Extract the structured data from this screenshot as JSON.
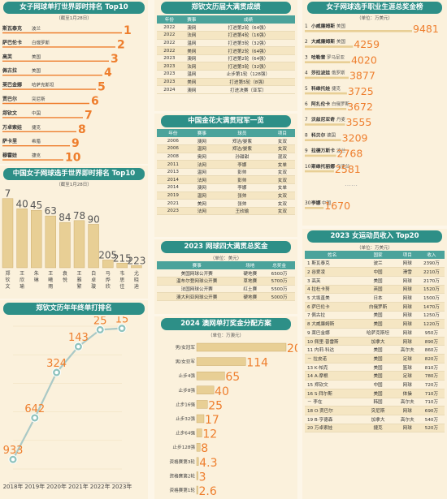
{
  "p1": {
    "title": "女子网球单打世界即时排名 Top10",
    "subtitle": "（截至1月28日）",
    "rows": [
      {
        "name": "斯瓦泰克",
        "country": "波兰",
        "rank": "1"
      },
      {
        "name": "萨巴伦卡",
        "country": "白俄罗斯",
        "rank": "2"
      },
      {
        "name": "高芙",
        "country": "美国",
        "rank": "3"
      },
      {
        "name": "佩古拉",
        "country": "美国",
        "rank": "4"
      },
      {
        "name": "莱巴金娜",
        "country": "哈萨克斯坦",
        "rank": "5"
      },
      {
        "name": "贾巴尔",
        "country": "突尼斯",
        "rank": "6"
      },
      {
        "name": "郑钦文",
        "country": "中国",
        "rank": "7"
      },
      {
        "name": "万卓索娃",
        "country": "捷克",
        "rank": "8"
      },
      {
        "name": "萨卡里",
        "country": "希腊",
        "rank": "9"
      },
      {
        "name": "穆霍娃",
        "country": "捷克",
        "rank": "10"
      }
    ]
  },
  "p2": {
    "title": "中国女子网球选手世界即时排名 Top10",
    "subtitle": "（截至1月28日）",
    "chart_data": {
      "type": "bar",
      "categories": [
        "郑钦文",
        "王欣瑜",
        "朱琳",
        "王曦雨",
        "袁悦",
        "王雅繁",
        "白卓璇",
        "马烨欣",
        "韦思佳",
        "尤晓迪"
      ],
      "values": [
        7,
        40,
        45,
        63,
        84,
        78,
        90,
        205,
        215,
        223
      ]
    }
  },
  "p3": {
    "title": "郑钦文历年年终单打排名",
    "chart_data": {
      "type": "line",
      "x": [
        "2018年",
        "2019年",
        "2020年",
        "2021年",
        "2022年",
        "2023年"
      ],
      "labels": [
        "933",
        "642",
        "324",
        "143",
        "25",
        "15"
      ],
      "values": [
        933,
        642,
        324,
        143,
        25,
        15
      ]
    }
  },
  "p4": {
    "title": "郑钦文历届大满贯成绩",
    "headers": [
      "年份",
      "赛事",
      "成绩"
    ],
    "rows": [
      [
        "2022",
        "澳网",
        "打进第2轮（64强）"
      ],
      [
        "2022",
        "法网",
        "打进第4轮（16强）"
      ],
      [
        "2022",
        "温网",
        "打进第3轮（32强）"
      ],
      [
        "2022",
        "美网",
        "打进第2轮（64强）"
      ],
      [
        "2023",
        "澳网",
        "打进第2轮（64强）"
      ],
      [
        "2023",
        "法网",
        "打进第3轮（32强）"
      ],
      [
        "2023",
        "温网",
        "止步第1轮（128强）"
      ],
      [
        "2023",
        "美网",
        "打进第5轮（8强）"
      ],
      [
        "2024",
        "澳网",
        "打进决赛（亚军）"
      ]
    ]
  },
  "p5": {
    "title": "中国金花大满贯冠军一览",
    "headers": [
      "年份",
      "赛事",
      "球员",
      "项目"
    ],
    "rows": [
      [
        "2006",
        "澳网",
        "郑洁/晏紫",
        "女双"
      ],
      [
        "2006",
        "温网",
        "郑洁/晏紫",
        "女双"
      ],
      [
        "2008",
        "奥网",
        "孙甜甜",
        "混双"
      ],
      [
        "2011",
        "法网",
        "李娜",
        "女单"
      ],
      [
        "2013",
        "温网",
        "彭帅",
        "女双"
      ],
      [
        "2014",
        "法网",
        "彭帅",
        "女双"
      ],
      [
        "2014",
        "澳网",
        "李娜",
        "女单"
      ],
      [
        "2019",
        "温网",
        "张帅",
        "女双"
      ],
      [
        "2021",
        "美网",
        "张帅",
        "女双"
      ],
      [
        "2023",
        "法网",
        "王欣瑜",
        "女双"
      ]
    ]
  },
  "p6": {
    "title": "2023 网球四大满贯总奖金",
    "subtitle": "（单位：美元）",
    "headers": [
      "赛事",
      "场地",
      "总奖金"
    ],
    "rows": [
      [
        "美国网球公开赛",
        "硬地赛",
        "6500万"
      ],
      [
        "温布尔登网球公开赛",
        "草地赛",
        "5700万"
      ],
      [
        "法国网球公开赛",
        "红土赛",
        "5500万"
      ],
      [
        "澳大利亚网球公开赛",
        "硬地赛",
        "5000万"
      ]
    ]
  },
  "p7": {
    "title": "2024 澳网单打奖金分配方案",
    "subtitle": "（单位：万澳元）",
    "chart_data": {
      "type": "bar",
      "categories": [
        "男/女冠军",
        "男/女亚军",
        "止步4强",
        "止步8强",
        "止步16强",
        "止步32强",
        "止步64强",
        "止步128强",
        "资格赛第3轮",
        "资格赛第2轮",
        "资格赛第1轮"
      ],
      "labels": [
        "208",
        "114",
        "65",
        "40",
        "25",
        "17",
        "12",
        "8",
        "4.3",
        "3",
        "2.6"
      ],
      "values": [
        208,
        114,
        65,
        40,
        25,
        17,
        12,
        8,
        4.3,
        3,
        2.6
      ]
    }
  },
  "p8": {
    "title": "女子网球选手职业生涯总奖金榜",
    "subtitle": "（单位：万美元）",
    "chart_data": {
      "type": "bar",
      "categories": [
        "小威廉姆斯",
        "大威廉姆斯",
        "哈勒普",
        "莎拉波娃",
        "科维托娃",
        "阿扎伦卡",
        "沃兹尼亚奇",
        "科贝尔",
        "拉德万斯卡",
        "斯维托丽娜",
        "李娜"
      ],
      "values": [
        9481,
        4259,
        4020,
        3877,
        3725,
        3672,
        3555,
        3209,
        2768,
        2581,
        1670
      ],
      "items": [
        {
          "rank": "1",
          "name": "小威廉姆斯",
          "country": "美国",
          "value": "9481"
        },
        {
          "rank": "2",
          "name": "大威廉姆斯",
          "country": "美国",
          "value": "4259"
        },
        {
          "rank": "3",
          "name": "哈勒普",
          "country": "罗马尼亚",
          "value": "4020"
        },
        {
          "rank": "4",
          "name": "莎拉波娃",
          "country": "俄罗斯",
          "value": "3877"
        },
        {
          "rank": "5",
          "name": "科维托娃",
          "country": "捷克",
          "value": "3725"
        },
        {
          "rank": "6",
          "name": "阿扎伦卡",
          "country": "白俄罗斯",
          "value": "3672"
        },
        {
          "rank": "7",
          "name": "沃兹尼亚奇",
          "country": "丹麦",
          "value": "3555"
        },
        {
          "rank": "8",
          "name": "科贝尔",
          "country": "德国",
          "value": "3209"
        },
        {
          "rank": "9",
          "name": "拉德万斯卡",
          "country": "波兰",
          "value": "2768"
        },
        {
          "rank": "10",
          "name": "斯维托丽娜",
          "country": "乌克兰",
          "value": "2581"
        },
        {
          "rank": "30",
          "name": "李娜",
          "country": "中国",
          "value": "1670"
        }
      ]
    }
  },
  "p9": {
    "title": "2023 女运动员收入 Top20",
    "subtitle": "（单位：万美元）",
    "headers": [
      "姓名",
      "国家",
      "项目",
      "收入"
    ],
    "rows": [
      [
        "1 斯瓦泰克",
        "波兰",
        "网球",
        "2390万"
      ],
      [
        "2 谷爱凌",
        "中国",
        "滑雪",
        "2210万"
      ],
      [
        "3 高芙",
        "美国",
        "网球",
        "2170万"
      ],
      [
        "4 拉杜卡努",
        "英国",
        "网球",
        "1520万"
      ],
      [
        "5 大坂直美",
        "日本",
        "网球",
        "1500万"
      ],
      [
        "6 萨巴伦卡",
        "白俄罗斯",
        "网球",
        "1470万"
      ],
      [
        "7 佩古拉",
        "美国",
        "网球",
        "1250万"
      ],
      [
        "8 大威廉姆斯",
        "美国",
        "网球",
        "1220万"
      ],
      [
        "9 莱巴金娜",
        "哈萨克斯坦",
        "网球",
        "950万"
      ],
      [
        "10 佩里·普雷斯",
        "加拿大",
        "网球",
        "890万"
      ],
      [
        "11 内莉·科达",
        "美国",
        "高尔夫",
        "860万"
      ],
      [
        "－ 拉皮诺",
        "美国",
        "足球",
        "820万"
      ],
      [
        "13 K·帕克",
        "美国",
        "篮球",
        "810万"
      ],
      [
        "14 A·摩根",
        "美国",
        "足球",
        "780万"
      ],
      [
        "15 郑钦文",
        "中国",
        "网球",
        "720万"
      ],
      [
        "16 S·拜尔斯",
        "美国",
        "体操",
        "710万"
      ],
      [
        "－ 李在",
        "韩国",
        "高尔夫",
        "710万"
      ],
      [
        "18 O·贾巴尔",
        "突尼斯",
        "网球",
        "690万"
      ],
      [
        "19 B·亨德森",
        "加拿大",
        "高尔夫",
        "540万"
      ],
      [
        "20 万卓索娃",
        "捷克",
        "网球",
        "520万"
      ]
    ]
  }
}
